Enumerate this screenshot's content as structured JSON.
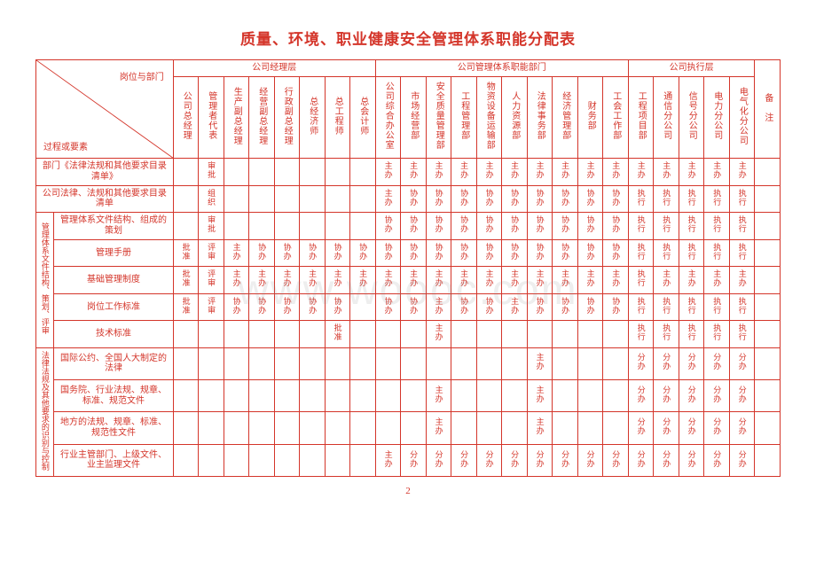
{
  "title": "质量、环境、职业健康安全管理体系职能分配表",
  "watermark": "www.woooc.com",
  "page_number": "2",
  "corner": {
    "top": "岗位与部门",
    "bottom": "过程或要素"
  },
  "group_headers": {
    "g1": "公司经理层",
    "g2": "公司管理体系职能部门",
    "g3": "公司执行层"
  },
  "dept": {
    "d0": "公司总经理",
    "d1": "管理者代表",
    "d2": "生产副总经理",
    "d3": "经营副总经理",
    "d4": "行政副总经理",
    "d5": "总经济师",
    "d6": "总工程师",
    "d7": "总会计师",
    "d8": "公司综合办公室",
    "d9": "市场经营部",
    "d10": "安全质量管理部",
    "d11": "工程管理部",
    "d12": "物资设备运输部",
    "d13": "人力资源部",
    "d14": "法律事务部",
    "d15": "经济管理部",
    "d16": "财务部",
    "d17": "工会工作部",
    "d18": "工程项目部",
    "d19": "通信分公司",
    "d20": "信号分公司",
    "d21": "电力分公司",
    "d22": "电气化分公司",
    "d23": "备　注"
  },
  "row_groups": {
    "g1": {
      "label": "管理体系文件结构、策划、评审",
      "r0": "部门《法律法规和其他要求目录清单》",
      "r1": "公司法律、法规和其他要求目录清单",
      "r2": "管理体系文件结构、组成的策划",
      "r3": "管理手册",
      "r4": "基础管理制度",
      "r5": "岗位工作标准",
      "r6": "技术标准"
    },
    "g2": {
      "label": "法律法规及其他要求的识别与控制",
      "r0": "国际公约、全国人大制定的法律",
      "r1": "国务院、行业法规、规章、标准、规范文件",
      "r2": "地方的法规、规章、标准、规范性文件",
      "r3": "行业主管部门、上级文件、业主监理文件"
    }
  },
  "cells": {
    "g1r0": [
      "",
      "审批",
      "",
      "",
      "",
      "",
      "",
      "",
      "主办",
      "主办",
      "主办",
      "主办",
      "主办",
      "主办",
      "主办",
      "主办",
      "主办",
      "主办",
      "主办",
      "主办",
      "主办",
      "主办",
      "主办",
      ""
    ],
    "g1r1": [
      "",
      "组织",
      "",
      "",
      "",
      "",
      "",
      "",
      "主办",
      "协办",
      "协办",
      "协办",
      "协办",
      "协办",
      "协办",
      "协办",
      "协办",
      "协办",
      "执行",
      "执行",
      "执行",
      "执行",
      "执行",
      ""
    ],
    "g1r2": [
      "",
      "审批",
      "",
      "",
      "",
      "",
      "",
      "",
      "协办",
      "协办",
      "协办",
      "协办",
      "协办",
      "协办",
      "协办",
      "协办",
      "协办",
      "协办",
      "执行",
      "执行",
      "执行",
      "执行",
      "执行",
      ""
    ],
    "g1r3": [
      "批准",
      "评审",
      "主办",
      "协办",
      "协办",
      "协办",
      "协办",
      "协办",
      "协办",
      "协办",
      "协办",
      "协办",
      "协办",
      "协办",
      "协办",
      "协办",
      "协办",
      "协办",
      "执行",
      "执行",
      "执行",
      "执行",
      "执行",
      ""
    ],
    "g1r4": [
      "批准",
      "评审",
      "主办",
      "主办",
      "主办",
      "主办",
      "主办",
      "主办",
      "主办",
      "主办",
      "主办",
      "主办",
      "主办",
      "主办",
      "主办",
      "主办",
      "主办",
      "主办",
      "执行",
      "主办",
      "主办",
      "主办",
      "主办",
      ""
    ],
    "g1r5": [
      "批准",
      "评审",
      "协办",
      "协办",
      "协办",
      "协办",
      "协办",
      "",
      "协办",
      "协办",
      "主办",
      "协办",
      "协办",
      "主办",
      "协办",
      "协办",
      "协办",
      "协办",
      "执行",
      "执行",
      "执行",
      "执行",
      "执行",
      ""
    ],
    "g1r6": [
      "",
      "",
      "",
      "",
      "",
      "",
      "批准",
      "",
      "",
      "",
      "主办",
      "",
      "",
      "",
      "",
      "",
      "",
      "",
      "执行",
      "执行",
      "执行",
      "执行",
      "执行",
      ""
    ],
    "g2r0": [
      "",
      "",
      "",
      "",
      "",
      "",
      "",
      "",
      "",
      "",
      "",
      "",
      "",
      "",
      "主办",
      "",
      "",
      "",
      "分办",
      "分办",
      "分办",
      "分办",
      "分办",
      ""
    ],
    "g2r1": [
      "",
      "",
      "",
      "",
      "",
      "",
      "",
      "",
      "",
      "",
      "主办",
      "",
      "",
      "",
      "主办",
      "",
      "",
      "",
      "分办",
      "分办",
      "分办",
      "分办",
      "分办",
      ""
    ],
    "g2r2": [
      "",
      "",
      "",
      "",
      "",
      "",
      "",
      "",
      "",
      "",
      "主办",
      "",
      "",
      "",
      "主办",
      "",
      "",
      "",
      "分办",
      "分办",
      "分办",
      "分办",
      "分办",
      ""
    ],
    "g2r3": [
      "",
      "",
      "",
      "",
      "",
      "",
      "",
      "",
      "主办",
      "分办",
      "分办",
      "分办",
      "分办",
      "分办",
      "分办",
      "分办",
      "分办",
      "分办",
      "分办",
      "分办",
      "分办",
      "分办",
      "分办",
      ""
    ]
  }
}
